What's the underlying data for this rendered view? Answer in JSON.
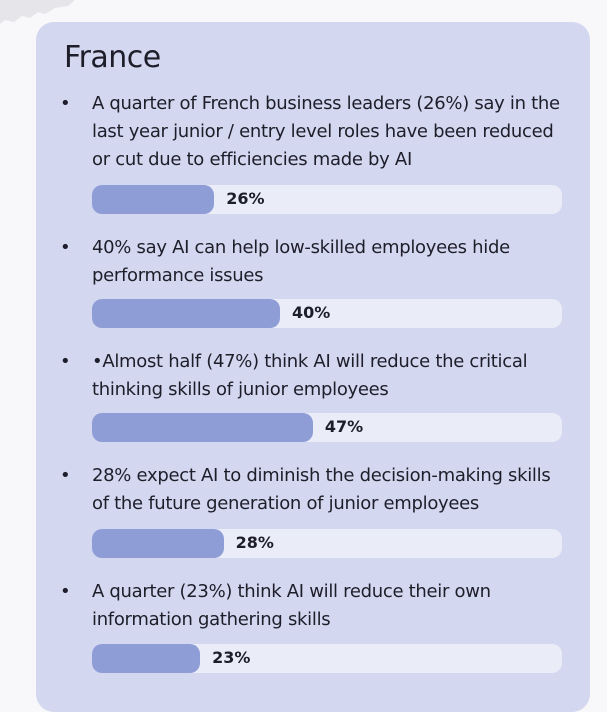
{
  "card": {
    "title": "France",
    "items": [
      {
        "text": "A quarter of French business leaders (26%) say in the last year junior / entry level roles have been reduced or cut due to efficiencies made by AI",
        "value": 26,
        "label": "26%"
      },
      {
        "text": "40% say AI can help low-skilled employees hide performance issues",
        "value": 40,
        "label": "40%"
      },
      {
        "text": "•Almost half (47%) think AI will reduce the critical thinking skills of junior employees",
        "value": 47,
        "label": "47%"
      },
      {
        "text": "28% expect AI to diminish the decision-making skills of the future generation of junior employees",
        "value": 28,
        "label": "28%"
      },
      {
        "text": "A quarter (23%) think AI will reduce their own information gathering skills",
        "value": 23,
        "label": "23%"
      }
    ]
  },
  "colors": {
    "card": "#d3d7ef",
    "track": "#eaecf8",
    "fill": "#8f9dd7"
  }
}
